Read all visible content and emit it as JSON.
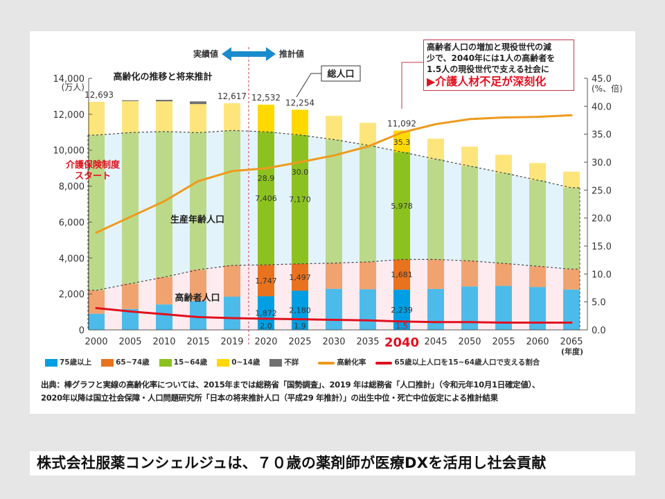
{
  "chart_data": {
    "type": "bar",
    "title": "高齢化の推移と将来推計",
    "categories": [
      "2000",
      "2005",
      "2010",
      "2015",
      "2019",
      "2020",
      "2025",
      "2030",
      "2035",
      "2040",
      "2045",
      "2050",
      "2055",
      "2060",
      "2065"
    ],
    "highlight_categories": [
      "2020",
      "2025",
      "2040"
    ],
    "xlabel": "(年度)",
    "ylabel_left": "(万人)",
    "ylabel_right": "(%、倍)",
    "ylim_left": [
      0,
      14000
    ],
    "ylim_right": [
      0,
      45
    ],
    "yticks_left": [
      "0",
      "2,000",
      "4,000",
      "6,000",
      "8,000",
      "10,000",
      "12,000",
      "14,000"
    ],
    "yticks_right": [
      "0.0",
      "5.0",
      "10.0",
      "15.0",
      "20.0",
      "25.0",
      "30.0",
      "35.0",
      "40.0",
      "45.0"
    ],
    "series": [
      {
        "name": "75歳以上",
        "color": "#4cbbea",
        "highlight_color": "#009fe3",
        "values": [
          901,
          1164,
          1419,
          1613,
          1849,
          1872,
          2180,
          2288,
          2260,
          2239,
          2277,
          2417,
          2446,
          2387,
          2248
        ]
      },
      {
        "name": "65~74歳",
        "color": "#f0a36f",
        "highlight_color": "#e8721e",
        "values": [
          1301,
          1407,
          1517,
          1734,
          1740,
          1747,
          1497,
          1428,
          1522,
          1681,
          1642,
          1424,
          1258,
          1154,
          1133
        ]
      },
      {
        "name": "15~64歳",
        "color": "#bcd989",
        "highlight_color": "#8cc21f",
        "values": [
          8638,
          8409,
          8103,
          7629,
          7507,
          7406,
          7170,
          6875,
          6494,
          5978,
          5584,
          5275,
          5028,
          4793,
          4529
        ]
      },
      {
        "name": "0~14歳",
        "color": "#fde57c",
        "highlight_color": "#ffd900",
        "values": [
          1851,
          1752,
          1680,
          1589,
          1521,
          1507,
          1407,
          1321,
          1246,
          1194,
          1138,
          1077,
          1012,
          951,
          898
        ]
      },
      {
        "name": "不詳",
        "color": "#707070",
        "highlight_color": "#707070",
        "values": [
          0,
          45,
          85,
          150,
          0,
          0,
          0,
          0,
          0,
          0,
          0,
          0,
          0,
          0,
          0
        ]
      }
    ],
    "lines": [
      {
        "name": "高齢化率",
        "color": "#ee9a1c",
        "axis": "right",
        "values": [
          17.4,
          20.2,
          23.0,
          26.6,
          28.4,
          28.9,
          30.0,
          31.2,
          32.8,
          35.3,
          36.8,
          37.7,
          38.0,
          38.1,
          38.4
        ]
      },
      {
        "name": "65歳以上人口を15~64歳人口で支える割合",
        "color": "#e0101e",
        "axis": "right",
        "values": [
          3.9,
          3.3,
          2.8,
          2.3,
          2.1,
          2.0,
          1.9,
          1.8,
          1.7,
          1.5,
          1.4,
          1.4,
          1.3,
          1.3,
          1.3
        ]
      }
    ],
    "data_labels": {
      "totals": [
        {
          "i": 0,
          "text": "12,693"
        },
        {
          "i": 4,
          "text": "12,617"
        },
        {
          "i": 5,
          "text": "12,532"
        },
        {
          "i": 6,
          "text": "12,254"
        },
        {
          "i": 9,
          "text": "11,092"
        }
      ],
      "aging_rate": [
        {
          "i": 5,
          "text": "28.9"
        },
        {
          "i": 6,
          "text": "30.0"
        },
        {
          "i": 9,
          "text": "35.3"
        }
      ],
      "working": [
        {
          "i": 5,
          "text": "7,406"
        },
        {
          "i": 6,
          "text": "7,170"
        },
        {
          "i": 9,
          "text": "5,978"
        }
      ],
      "age65_74": [
        {
          "i": 5,
          "text": "1,747"
        },
        {
          "i": 6,
          "text": "1,497"
        },
        {
          "i": 9,
          "text": "1,681"
        }
      ],
      "age75": [
        {
          "i": 5,
          "text": "1,872"
        },
        {
          "i": 6,
          "text": "2,180"
        },
        {
          "i": 9,
          "text": "2,239"
        }
      ],
      "support": [
        {
          "i": 5,
          "text": "2.0"
        },
        {
          "i": 6,
          "text": "1.9"
        },
        {
          "i": 9,
          "text": "1.5"
        }
      ]
    },
    "annotations": {
      "actual": "実績値",
      "projected": "推計値",
      "total_population": "総人口",
      "insurance_start_1": "介護保険制度",
      "insurance_start_2": "スタート",
      "working_age": "生産年齢人口",
      "elderly": "高齢者人口"
    },
    "grid": false,
    "legend_position": "bottom"
  },
  "callout": {
    "line1": "高齢者人口の増加と現役世代の減",
    "line2": "少で、2040年には1人の高齢者を",
    "line3": "1.5人の現役世代で支える社会に",
    "emphasis": "▶介護人材不足が深刻化"
  },
  "source": {
    "line1": "出典：棒グラフと実線の高齢化率については、2015年までは総務省「国勢調査」、2019 年は総務省「人口推計」（令和元年10月1日確定値）、",
    "line2": "2020年以降は国立社会保障・人口問題研究所「日本の将来推計人口（平成29 年推計）」の出生中位・死亡中位仮定による推計結果"
  },
  "banner": "株式会社服薬コンシェルジュは、７０歳の薬剤師が医療DXを活用し社会貢献"
}
